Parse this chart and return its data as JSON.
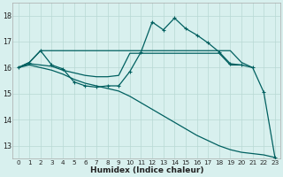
{
  "bg_color": "#d8f0ee",
  "grid_color": "#b8d8d4",
  "line_color": "#006060",
  "xlabel": "Humidex (Indice chaleur)",
  "xlim": [
    -0.5,
    23.5
  ],
  "ylim": [
    12.5,
    18.5
  ],
  "yticks": [
    13,
    14,
    15,
    16,
    17,
    18
  ],
  "xticks": [
    0,
    1,
    2,
    3,
    4,
    5,
    6,
    7,
    8,
    9,
    10,
    11,
    12,
    13,
    14,
    15,
    16,
    17,
    18,
    19,
    20,
    21,
    22,
    23
  ],
  "curve_main_x": [
    0,
    1,
    2,
    3,
    4,
    5,
    6,
    7,
    8,
    9,
    10,
    11,
    12,
    13,
    14,
    15,
    16,
    17,
    18,
    19,
    20,
    21,
    22,
    23
  ],
  "curve_main_y": [
    16.0,
    16.2,
    16.65,
    16.1,
    15.95,
    15.45,
    15.3,
    15.25,
    15.3,
    15.3,
    15.85,
    16.6,
    17.75,
    17.45,
    17.9,
    17.5,
    17.25,
    16.95,
    16.6,
    16.15,
    16.1,
    16.0,
    15.05,
    12.55
  ],
  "curve_upper_x": [
    0,
    1,
    2,
    3,
    4,
    5,
    6,
    7,
    8,
    9,
    10,
    11,
    12,
    13,
    14,
    15,
    16,
    17,
    18,
    19,
    20,
    21
  ],
  "curve_upper_y": [
    16.0,
    16.2,
    16.65,
    16.65,
    16.65,
    16.65,
    16.65,
    16.65,
    16.65,
    16.65,
    16.65,
    16.65,
    16.65,
    16.65,
    16.65,
    16.65,
    16.65,
    16.65,
    16.65,
    16.65,
    16.2,
    16.0
  ],
  "curve_mid_x": [
    0,
    1,
    2,
    3,
    4,
    5,
    6,
    7,
    8,
    9,
    10,
    11,
    12,
    13,
    14,
    15,
    16,
    17,
    18,
    19,
    20
  ],
  "curve_mid_y": [
    16.0,
    16.15,
    16.1,
    16.05,
    15.9,
    15.8,
    15.7,
    15.65,
    15.65,
    15.7,
    16.55,
    16.55,
    16.55,
    16.55,
    16.55,
    16.55,
    16.55,
    16.55,
    16.55,
    16.1,
    16.1
  ],
  "curve_low_x": [
    0,
    1,
    2,
    3,
    4,
    5,
    6,
    7,
    8,
    9,
    10,
    11,
    12,
    13,
    14,
    15,
    16,
    17,
    18,
    19,
    20,
    21,
    22,
    23
  ],
  "curve_low_y": [
    16.0,
    16.1,
    16.0,
    15.9,
    15.75,
    15.55,
    15.4,
    15.3,
    15.2,
    15.1,
    14.9,
    14.65,
    14.4,
    14.15,
    13.9,
    13.65,
    13.4,
    13.2,
    13.0,
    12.85,
    12.75,
    12.7,
    12.65,
    12.55
  ]
}
